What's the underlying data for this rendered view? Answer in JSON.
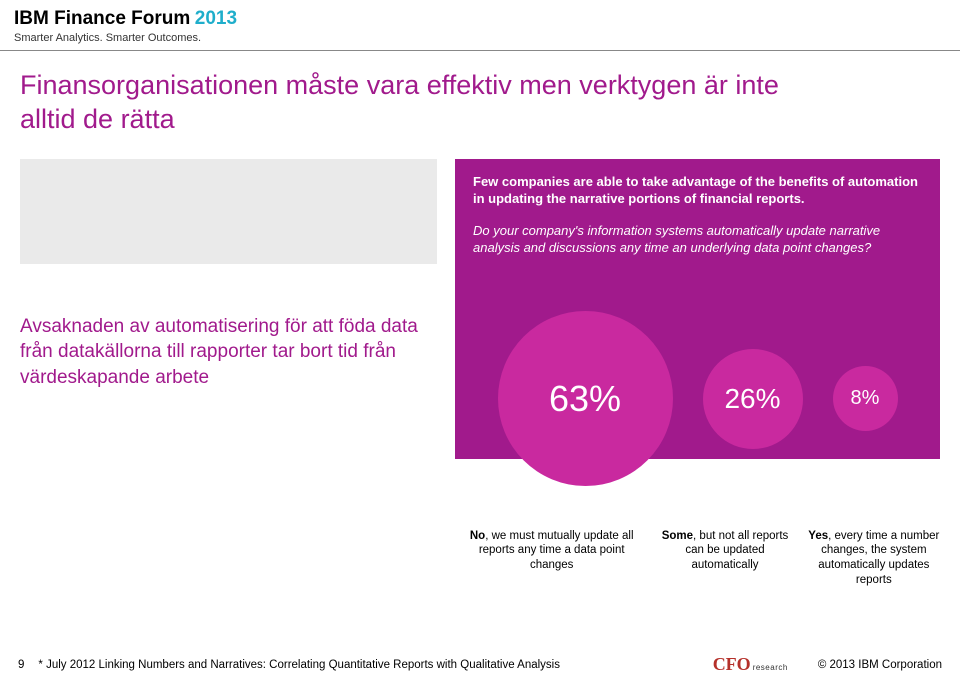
{
  "header": {
    "forum_title": "IBM Finance Forum",
    "forum_year": "2013",
    "tagline": "Smarter Analytics. Smarter Outcomes.",
    "ibm_logo_text": "IBM"
  },
  "slide": {
    "title": "Finansorganisationen måste vara effektiv men verktygen är inte alltid de rätta",
    "swedish_paragraph": "Avsaknaden av automatisering för att föda data från datakällorna till rapporter tar bort tid från värdeskapande arbete"
  },
  "purple_panel": {
    "intro": "Few companies are able to take advantage of the benefits of automation in updating the narrative portions of financial reports.",
    "question": "Do your company's information systems automatically update narrative analysis and discussions any time an underlying data point changes?",
    "background_color": "#a11a8c",
    "bubble_color": "#c9299f"
  },
  "chart": {
    "type": "pie-bubbles",
    "items": [
      {
        "value": "63%",
        "size": 175
      },
      {
        "value": "26%",
        "size": 100
      },
      {
        "value": "8%",
        "size": 65
      }
    ]
  },
  "answers": [
    {
      "lead": "No",
      "rest": ", we must mutually update all reports any time a data point changes"
    },
    {
      "lead": "Some",
      "rest": ", but not all reports can be updated automatically"
    },
    {
      "lead": "Yes",
      "rest": ", every time a number changes, the system automatically updates reports"
    }
  ],
  "footer": {
    "page_number": "9",
    "footnote": "* July 2012 Linking Numbers and Narratives: Correlating Quantitative Reports with Qualitative Analysis",
    "cfo_main": "CFO",
    "cfo_sub": "research",
    "copyright": "© 2013 IBM Corporation"
  },
  "colors": {
    "accent_purple": "#a11a8c",
    "bubble_purple": "#c9299f",
    "teal": "#1faecb",
    "gray_band": "#eaeaea",
    "cfo_red": "#b5302a"
  }
}
